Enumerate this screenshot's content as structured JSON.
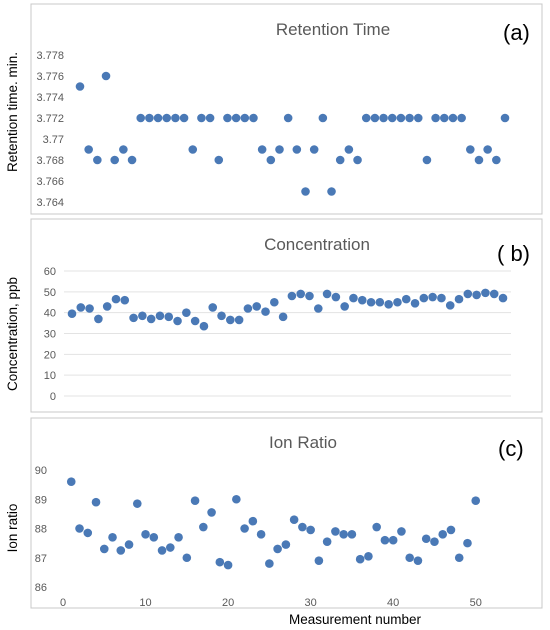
{
  "colors": {
    "marker": "#4a79b6",
    "panel_border": "#c8c8c8",
    "grid": "#e3e3e3",
    "text": "#595959",
    "axis_title": "#000000"
  },
  "figure": {
    "xlabel": "Measurement number"
  },
  "chart_data": [
    {
      "type": "scatter",
      "title": "Retention Time",
      "panel_label": "(a)",
      "ylabel": "Retention time. min.",
      "xlabel": "",
      "xlim": [
        1,
        50
      ],
      "ylim": [
        3.764,
        3.778
      ],
      "yticks": [
        "3.778",
        "3.776",
        "3.774",
        "3.772",
        "3.77",
        "3.768",
        "3.766",
        "3.764"
      ],
      "ytick_values": [
        3.778,
        3.776,
        3.774,
        3.772,
        3.77,
        3.768,
        3.766,
        3.764
      ],
      "grid": false,
      "x": [
        1,
        2,
        3,
        4,
        5,
        6,
        7,
        8,
        9,
        10,
        11,
        12,
        13,
        14,
        15,
        16,
        17,
        18,
        19,
        20,
        21,
        22,
        23,
        24,
        25,
        26,
        27,
        28,
        29,
        30,
        31,
        32,
        33,
        34,
        35,
        36,
        37,
        38,
        39,
        40,
        41,
        42,
        43,
        44,
        45,
        46,
        47,
        48,
        49,
        50
      ],
      "y": [
        3.775,
        3.769,
        3.768,
        3.776,
        3.768,
        3.769,
        3.768,
        3.772,
        3.772,
        3.772,
        3.772,
        3.772,
        3.772,
        3.769,
        3.772,
        3.772,
        3.768,
        3.772,
        3.772,
        3.772,
        3.772,
        3.769,
        3.768,
        3.769,
        3.772,
        3.769,
        3.765,
        3.769,
        3.772,
        3.765,
        3.768,
        3.769,
        3.768,
        3.772,
        3.772,
        3.772,
        3.772,
        3.772,
        3.772,
        3.772,
        3.768,
        3.772,
        3.772,
        3.772,
        3.772,
        3.769,
        3.768,
        3.769,
        3.768,
        3.772
      ]
    },
    {
      "type": "scatter",
      "title": "Concentration",
      "panel_label": "( b)",
      "ylabel": "Concentration, ppb",
      "xlabel": "",
      "xlim": [
        1,
        50
      ],
      "ylim": [
        0,
        60
      ],
      "yticks": [
        "60",
        "50",
        "40",
        "30",
        "20",
        "10",
        "0"
      ],
      "ytick_values": [
        60,
        50,
        40,
        30,
        20,
        10,
        0
      ],
      "grid": true,
      "x": [
        1,
        2,
        3,
        4,
        5,
        6,
        7,
        8,
        9,
        10,
        11,
        12,
        13,
        14,
        15,
        16,
        17,
        18,
        19,
        20,
        21,
        22,
        23,
        24,
        25,
        26,
        27,
        28,
        29,
        30,
        31,
        32,
        33,
        34,
        35,
        36,
        37,
        38,
        39,
        40,
        41,
        42,
        43,
        44,
        45,
        46,
        47,
        48,
        49,
        50
      ],
      "y": [
        39.5,
        42.5,
        42,
        37,
        43,
        46.5,
        46,
        37.5,
        38.5,
        37,
        38.5,
        38,
        36,
        40,
        36,
        33.5,
        42.5,
        38.5,
        36.5,
        36.5,
        42,
        43,
        40.5,
        45,
        38,
        48,
        49,
        48,
        42,
        49,
        47.5,
        43,
        47,
        46,
        45,
        45,
        44,
        45,
        46.5,
        44.5,
        47,
        47.5,
        47,
        43.5,
        46.5,
        49,
        48.5,
        49.5,
        49,
        47
      ]
    },
    {
      "type": "scatter",
      "title": "Ion Ratio",
      "panel_label": "(c)",
      "ylabel": "Ion ratio",
      "xlabel": "",
      "xlim": [
        0,
        55
      ],
      "ylim": [
        86,
        90
      ],
      "yticks": [
        "90",
        "89",
        "88",
        "87",
        "86"
      ],
      "ytick_values": [
        90,
        89,
        88,
        87,
        86
      ],
      "xticks": [
        "0",
        "10",
        "20",
        "30",
        "40",
        "50"
      ],
      "xtick_values": [
        0,
        10,
        20,
        30,
        40,
        50
      ],
      "grid": false,
      "x": [
        1,
        2,
        3,
        4,
        5,
        6,
        7,
        8,
        9,
        10,
        11,
        12,
        13,
        14,
        15,
        16,
        17,
        18,
        19,
        20,
        21,
        22,
        23,
        24,
        25,
        26,
        27,
        28,
        29,
        30,
        31,
        32,
        33,
        34,
        35,
        36,
        37,
        38,
        39,
        40,
        41,
        42,
        43,
        44,
        45,
        46,
        47,
        48,
        49,
        50
      ],
      "y": [
        89.6,
        88.0,
        87.85,
        88.9,
        87.3,
        87.7,
        87.25,
        87.45,
        88.85,
        87.8,
        87.7,
        87.25,
        87.35,
        87.7,
        87.0,
        88.95,
        88.05,
        88.55,
        86.85,
        86.75,
        89.0,
        88.0,
        88.25,
        87.8,
        86.8,
        87.3,
        87.45,
        88.3,
        88.05,
        87.95,
        86.9,
        87.55,
        87.9,
        87.8,
        87.8,
        86.95,
        87.05,
        88.05,
        87.6,
        87.6,
        87.9,
        87.0,
        86.9,
        87.65,
        87.55,
        87.8,
        87.95,
        87.0,
        87.5,
        88.95
      ]
    }
  ]
}
